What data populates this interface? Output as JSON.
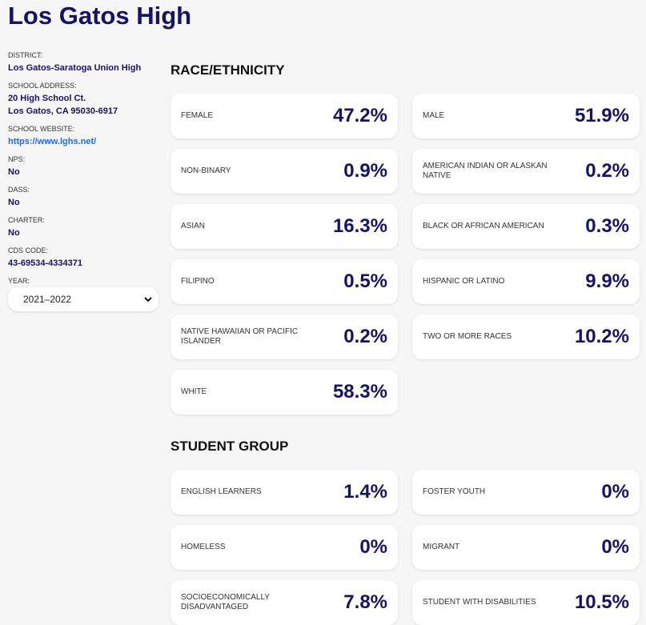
{
  "title": "Los Gatos High",
  "info": [
    {
      "label": "DISTRICT:",
      "value": "Los Gatos-Saratoga Union High"
    },
    {
      "label": "SCHOOL ADDRESS:",
      "value": "20 High School Ct.",
      "value2": "Los Gatos, CA 95030-6917"
    },
    {
      "label": "SCHOOL WEBSITE:",
      "link": "https://www.lghs.net/"
    },
    {
      "label": "NPS:",
      "value": "No"
    },
    {
      "label": "DASS:",
      "value": "No"
    },
    {
      "label": "CHARTER:",
      "value": "No"
    },
    {
      "label": "CDS CODE:",
      "value": "43-69534-4334371"
    }
  ],
  "year": {
    "label": "YEAR:",
    "selected": "2021–2022"
  },
  "race": {
    "heading": "RACE/ETHNICITY",
    "items": [
      {
        "name": "Female",
        "pct": "47.2%"
      },
      {
        "name": "Male",
        "pct": "51.9%"
      },
      {
        "name": "Non-Binary",
        "pct": "0.9%"
      },
      {
        "name": "American Indian or Alaskan Native",
        "pct": "0.2%"
      },
      {
        "name": "Asian",
        "pct": "16.3%"
      },
      {
        "name": "Black or African American",
        "pct": "0.3%"
      },
      {
        "name": "Filipino",
        "pct": "0.5%"
      },
      {
        "name": "Hispanic or Latino",
        "pct": "9.9%"
      },
      {
        "name": "Native Hawaiian or Pacific Islander",
        "pct": "0.2%"
      },
      {
        "name": "Two or More Races",
        "pct": "10.2%"
      },
      {
        "name": "White",
        "pct": "58.3%"
      }
    ]
  },
  "group": {
    "heading": "STUDENT GROUP",
    "items": [
      {
        "name": "English Learners",
        "pct": "1.4%"
      },
      {
        "name": "Foster Youth",
        "pct": "0%"
      },
      {
        "name": "Homeless",
        "pct": "0%"
      },
      {
        "name": "Migrant",
        "pct": "0%"
      },
      {
        "name": "Socioeconomically Disadvantaged",
        "pct": "7.8%"
      },
      {
        "name": "Student with Disabilities",
        "pct": "10.5%"
      }
    ]
  }
}
